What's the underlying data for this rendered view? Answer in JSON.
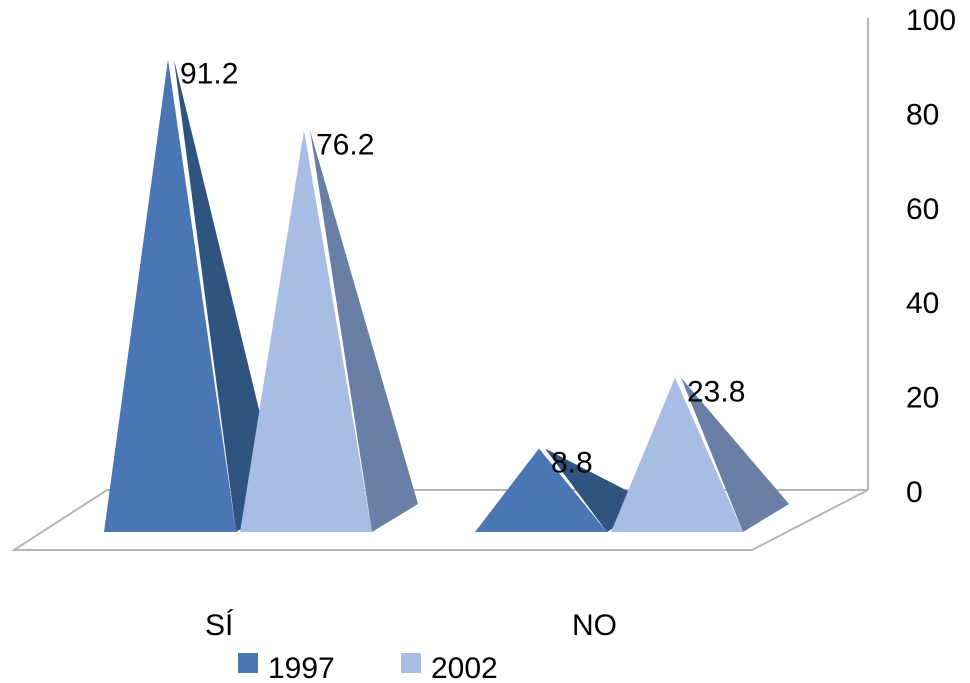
{
  "chart_data": {
    "type": "bar",
    "style": "3d-pyramid",
    "title": "",
    "xlabel": "",
    "ylabel": "",
    "categories": [
      "SÍ",
      "NO"
    ],
    "series": [
      {
        "name": "1997",
        "values": [
          91.2,
          8.8
        ],
        "color": "#4a77b4",
        "side_color": "#2f5480"
      },
      {
        "name": "2002",
        "values": [
          76.2,
          23.8
        ],
        "color": "#a8bde3",
        "side_color": "#6a7fa6"
      }
    ],
    "data_labels": [
      "91.2",
      "8.8",
      "76.2",
      "23.8"
    ],
    "y_ticks": [
      "0",
      "20",
      "40",
      "60",
      "80",
      "100"
    ],
    "ylim": [
      0,
      100
    ],
    "y_axis_position": "right",
    "grid": false,
    "legend": {
      "position": "bottom",
      "entries": [
        "1997",
        "2002"
      ]
    },
    "colors": {
      "axis": "#b5b5b5",
      "floor": "#ffffff"
    }
  }
}
